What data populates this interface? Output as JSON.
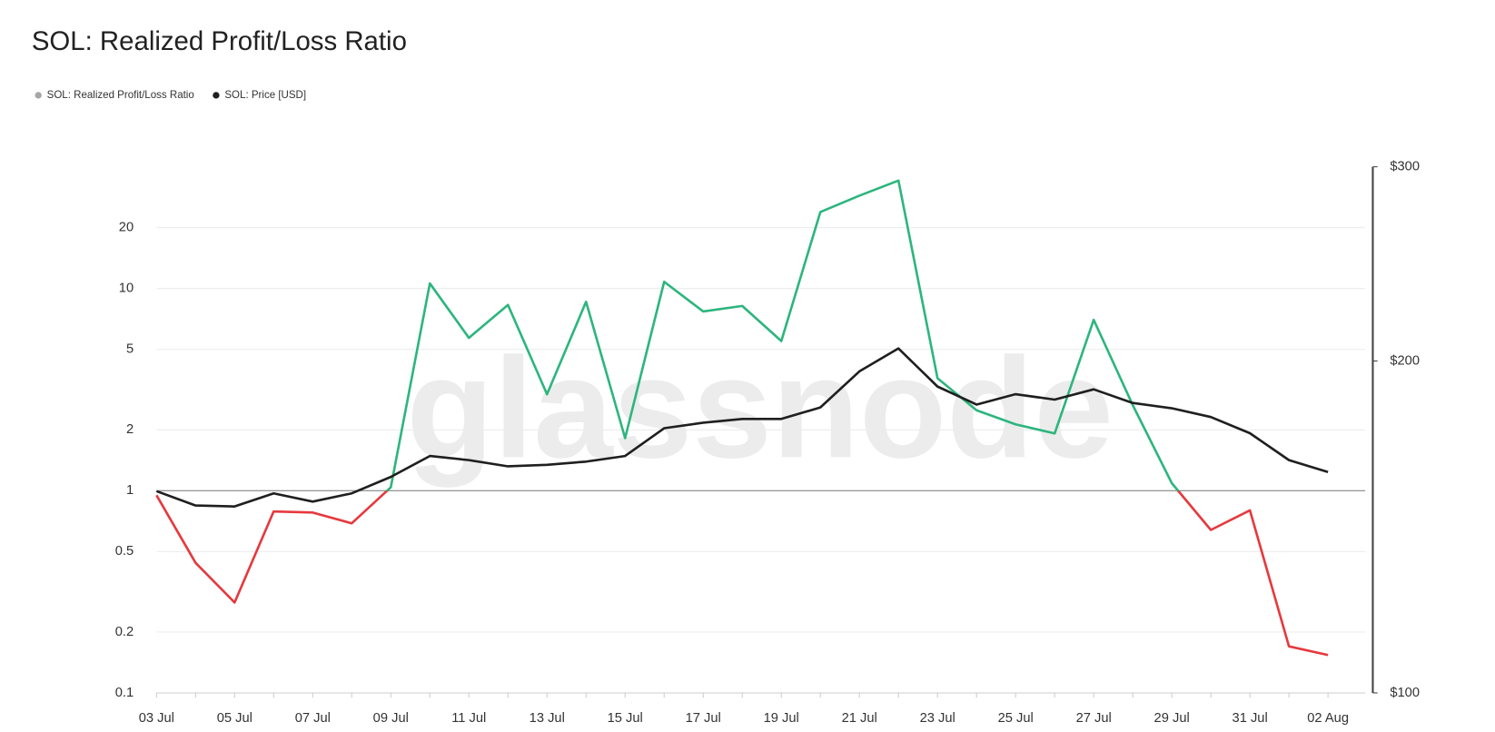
{
  "chart_data": {
    "type": "line",
    "title": "SOL: Realized Profit/Loss Ratio",
    "watermark": "glassnode",
    "categories": [
      "03 Jul",
      null,
      "05 Jul",
      null,
      "07 Jul",
      null,
      "09 Jul",
      null,
      "11 Jul",
      null,
      "13 Jul",
      null,
      "15 Jul",
      null,
      "17 Jul",
      null,
      "19 Jul",
      null,
      "21 Jul",
      null,
      "23 Jul",
      null,
      "25 Jul",
      null,
      "27 Jul",
      null,
      "29 Jul",
      null,
      "31 Jul",
      null,
      "02 Aug"
    ],
    "series": [
      {
        "name": "SOL: Realized Profit/Loss Ratio",
        "color": "#a6a6a6",
        "positive_color": "#2db57e",
        "negative_color": "#e5393d",
        "threshold": 1,
        "values": [
          0.95,
          0.44,
          0.28,
          0.79,
          0.78,
          0.69,
          1.04,
          10.6,
          5.7,
          8.3,
          3.0,
          8.6,
          1.82,
          10.8,
          7.7,
          8.2,
          5.5,
          23.9,
          28.8,
          34.2,
          3.6,
          2.5,
          2.13,
          1.92,
          7.0,
          2.65,
          1.09,
          0.64,
          0.8,
          0.17,
          0.154
        ]
      },
      {
        "name": "SOL: Price [USD]",
        "color": "#1f1f1f",
        "axis": "y2",
        "values": [
          152.4,
          147.9,
          147.6,
          151.7,
          149.1,
          151.7,
          157,
          164,
          162.6,
          160.5,
          161,
          162.1,
          164,
          173.8,
          175.8,
          177.2,
          177.2,
          181.5,
          195.7,
          205.3,
          189.6,
          182.6,
          186.6,
          184.5,
          188.5,
          183.2,
          181.2,
          177.9,
          172,
          162.6,
          158.6
        ]
      }
    ],
    "ylim": [
      0.1,
      40
    ],
    "yticks": [
      0.1,
      0.2,
      0.5,
      1,
      2,
      5,
      10,
      20
    ],
    "log_y": true,
    "y2lim": [
      100,
      300
    ],
    "y2ticks": [
      {
        "value": 100,
        "label": "$100"
      },
      {
        "value": 200,
        "label": "$200"
      },
      {
        "value": 300,
        "label": "$300"
      }
    ],
    "log_y2": true,
    "grid": true,
    "legend": "top-left"
  }
}
